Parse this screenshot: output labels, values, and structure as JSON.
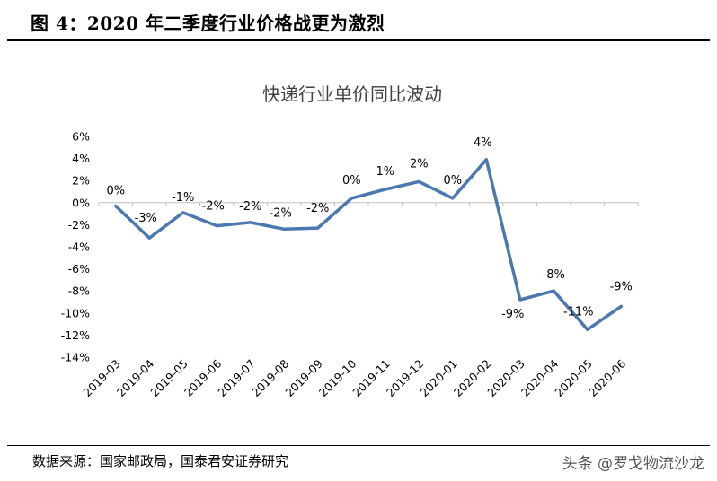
{
  "header": {
    "title": "图 4：2020 年二季度行业价格战更为激烈"
  },
  "footer": {
    "source": "数据来源：国家邮政局，国泰君安证券研究",
    "watermark": "头条 @罗戈物流沙龙"
  },
  "colors": {
    "line": "#4A78AF",
    "axis": "#bfbfbf"
  },
  "chart_data": {
    "type": "line",
    "title": "快递行业单价同比波动",
    "categories": [
      "2019-03",
      "2019-04",
      "2019-05",
      "2019-06",
      "2019-07",
      "2019-08",
      "2019-09",
      "2019-10",
      "2019-11",
      "2019-12",
      "2020-01",
      "2020-02",
      "2020-03",
      "2020-04",
      "2020-05",
      "2020-06"
    ],
    "series": [
      {
        "values": [
          -0.3,
          -3.2,
          -0.9,
          -2.1,
          -1.8,
          -2.4,
          -2.3,
          0.4,
          1.2,
          1.9,
          0.4,
          3.9,
          -8.8,
          -8.0,
          -11.5,
          -9.4
        ],
        "labels": [
          "0%",
          "-3%",
          "-1%",
          "-2%",
          "-2%",
          "-2%",
          "-2%",
          "0%",
          "1%",
          "2%",
          "0%",
          "4%",
          "-9%",
          "-8%",
          "-11%",
          "-9%"
        ]
      }
    ],
    "ylim": [
      -14,
      6
    ],
    "yticks": [
      6,
      4,
      2,
      0,
      -2,
      -4,
      -6,
      -8,
      -10,
      -12,
      -14
    ],
    "ytick_labels": [
      "6%",
      "4%",
      "2%",
      "0%",
      "-2%",
      "-4%",
      "-6%",
      "-8%",
      "-10%",
      "-12%",
      "-14%"
    ],
    "grid": false,
    "legend": "none"
  }
}
